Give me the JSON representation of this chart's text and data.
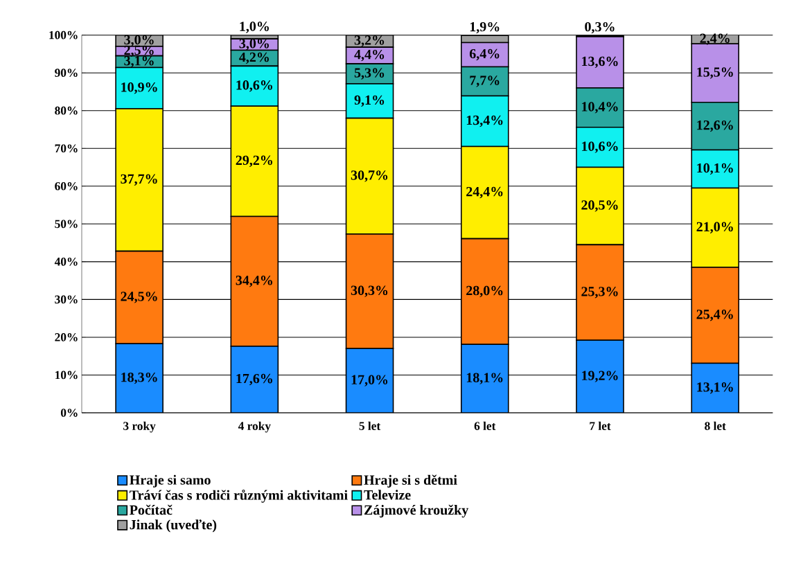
{
  "chart_data": {
    "type": "bar",
    "stacked": true,
    "categories": [
      "3 roky",
      "4 roky",
      "5 let",
      "6 let",
      "7 let",
      "8 let"
    ],
    "ylim": [
      0,
      100
    ],
    "yticks": [
      {
        "value": 0,
        "label": "0%"
      },
      {
        "value": 10,
        "label": "10%"
      },
      {
        "value": 20,
        "label": "20%"
      },
      {
        "value": 30,
        "label": "30%"
      },
      {
        "value": 40,
        "label": "40%"
      },
      {
        "value": 50,
        "label": "50%"
      },
      {
        "value": 60,
        "label": "60%"
      },
      {
        "value": 70,
        "label": "70%"
      },
      {
        "value": 80,
        "label": "80%"
      },
      {
        "value": 90,
        "label": "90%"
      },
      {
        "value": 100,
        "label": "100%"
      }
    ],
    "grid": "y",
    "legend": "bottom",
    "series": [
      {
        "name": "Hraje si samo",
        "color": "#1a8cff",
        "values": [
          18.3,
          17.6,
          17.0,
          18.1,
          19.2,
          13.1
        ],
        "value_labels": [
          "18,3%",
          "17,6%",
          "17,0%",
          "18,1%",
          "19,2%",
          "13,1%"
        ]
      },
      {
        "name": "Hraje si s dětmi",
        "color": "#ff7a10",
        "values": [
          24.5,
          34.4,
          30.3,
          28.0,
          25.3,
          25.4
        ],
        "value_labels": [
          "24,5%",
          "34,4%",
          "30,3%",
          "28,0%",
          "25,3%",
          "25,4%"
        ]
      },
      {
        "name": "Tráví čas s rodiči různými aktivitami",
        "color": "#ffee00",
        "values": [
          37.7,
          29.2,
          30.7,
          24.4,
          20.5,
          21.0
        ],
        "value_labels": [
          "37,7%",
          "29,2%",
          "30,7%",
          "24,4%",
          "20,5%",
          "21,0%"
        ]
      },
      {
        "name": "Televize",
        "color": "#10f0f0",
        "values": [
          10.9,
          10.6,
          9.1,
          13.4,
          10.6,
          10.1
        ],
        "value_labels": [
          "10,9%",
          "10,6%",
          "9,1%",
          "13,4%",
          "10,6%",
          "10,1%"
        ]
      },
      {
        "name": "Počítač",
        "color": "#2aa8a0",
        "values": [
          3.1,
          4.2,
          5.3,
          7.7,
          10.4,
          12.6
        ],
        "value_labels": [
          "3,1%",
          "4,2%",
          "5,3%",
          "7,7%",
          "10,4%",
          "12,6%"
        ]
      },
      {
        "name": "Zájmové kroužky",
        "color": "#b890e8",
        "values": [
          2.5,
          3.0,
          4.4,
          6.4,
          13.6,
          15.5
        ],
        "value_labels": [
          "2,5%",
          "3,0%",
          "4,4%",
          "6,4%",
          "13,6%",
          "15,5%"
        ]
      },
      {
        "name": "Jinak (uveďte)",
        "color": "#a0a0a0",
        "values": [
          3.0,
          1.0,
          3.2,
          1.9,
          0.3,
          2.4
        ],
        "value_labels": [
          "3,0%",
          "1,0%",
          "3,2%",
          "1,9%",
          "0,3%",
          "2,4%"
        ]
      }
    ]
  }
}
